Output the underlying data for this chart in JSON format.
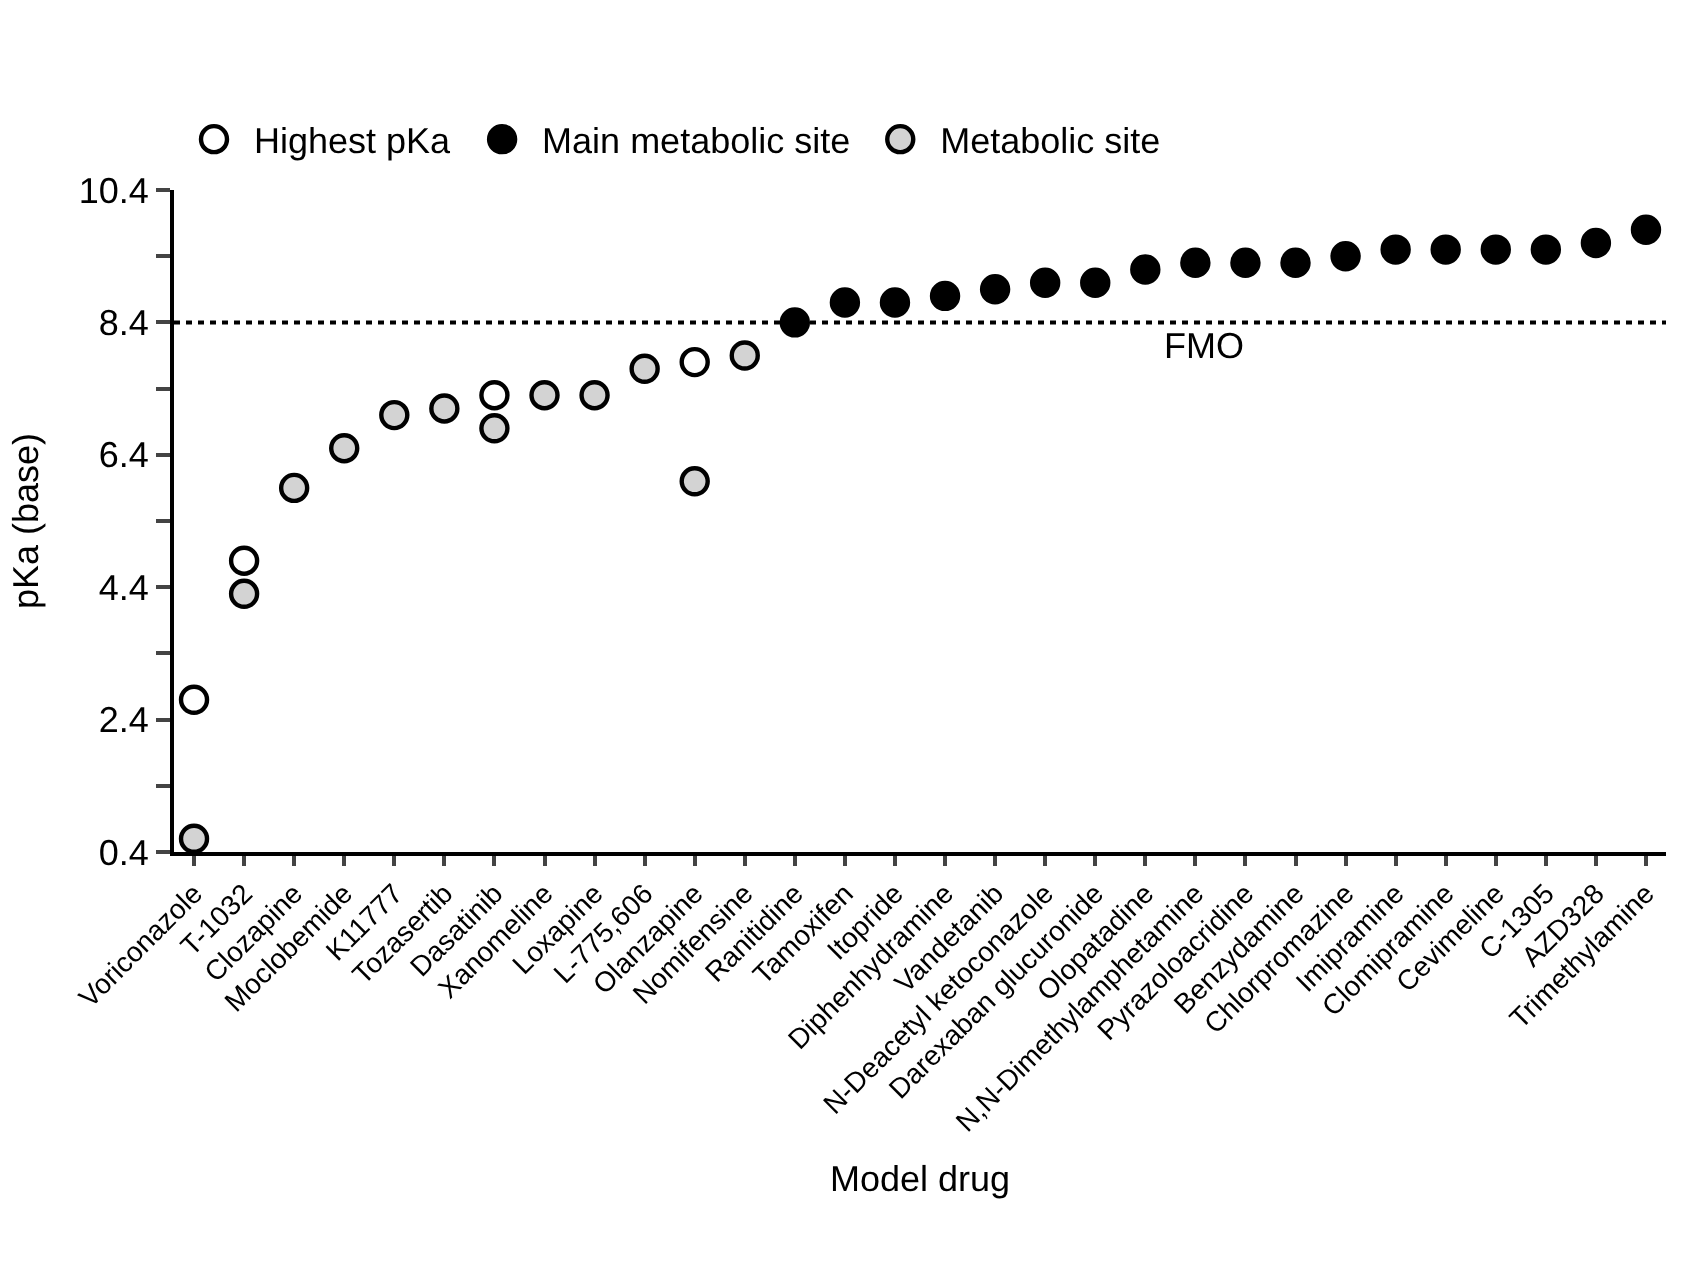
{
  "chart_data": {
    "type": "scatter",
    "xlabel": "Model drug",
    "ylabel": "pKa (base)",
    "categories": [
      "Voriconazole",
      "T-1032",
      "Clozapine",
      "Moclobemide",
      "K11777",
      "Tozasertib",
      "Dasatinib",
      "Xanomeline",
      "Loxapine",
      "L-775,606",
      "Olanzapine",
      "Nomifensine",
      "Ranitidine",
      "Tamoxifen",
      "Itopride",
      "Diphenhydramine",
      "Vandetanib",
      "N-Deacetyl ketoconazole",
      "Darexaban glucuronide",
      "Olopatadine",
      "N,N-Dimethylamphetamine",
      "Pyrazoloacridine",
      "Benzydamine",
      "Chlorpromazine",
      "Imipramine",
      "Clomipramine",
      "Cevimeline",
      "C-1305",
      "AZD328",
      "Trimethylamine"
    ],
    "series": [
      {
        "name": "Highest pKa",
        "color": "#ffffff",
        "values": [
          2.7,
          4.8,
          null,
          null,
          null,
          null,
          7.3,
          null,
          null,
          null,
          7.8,
          null,
          null,
          null,
          null,
          null,
          null,
          null,
          null,
          null,
          null,
          null,
          null,
          null,
          null,
          null,
          null,
          null,
          null,
          null
        ]
      },
      {
        "name": "Main metabolic site",
        "color": "#000000",
        "values": [
          null,
          null,
          null,
          null,
          null,
          null,
          null,
          null,
          null,
          null,
          null,
          null,
          8.4,
          8.7,
          8.7,
          8.8,
          8.9,
          9.0,
          9.0,
          9.2,
          9.3,
          9.3,
          9.3,
          9.4,
          9.5,
          9.5,
          9.5,
          9.5,
          9.6,
          9.8
        ]
      },
      {
        "name": "Metabolic site",
        "color": "#d3d3d3",
        "values": [
          0.6,
          4.3,
          5.9,
          6.5,
          7.0,
          7.1,
          6.8,
          7.3,
          7.3,
          7.7,
          6.0,
          7.9,
          null,
          null,
          null,
          null,
          null,
          null,
          null,
          null,
          null,
          null,
          null,
          null,
          null,
          null,
          null,
          null,
          null,
          null
        ]
      }
    ],
    "ylim": [
      0.4,
      10.4
    ],
    "yticks": [
      0.4,
      {
        "value": 1.4,
        "label": null
      },
      2.4,
      {
        "value": 3.4,
        "label": null
      },
      4.4,
      {
        "value": 5.4,
        "label": null
      },
      6.4,
      {
        "value": 7.4,
        "label": null
      },
      8.4,
      {
        "value": 9.4,
        "label": null
      },
      10.4
    ],
    "ref_lines": [
      {
        "axis": "y",
        "value": 8.4,
        "label": "FMO",
        "color": "#000000",
        "line_style": "dotted"
      }
    ],
    "marker": "circle",
    "legend": "top"
  }
}
